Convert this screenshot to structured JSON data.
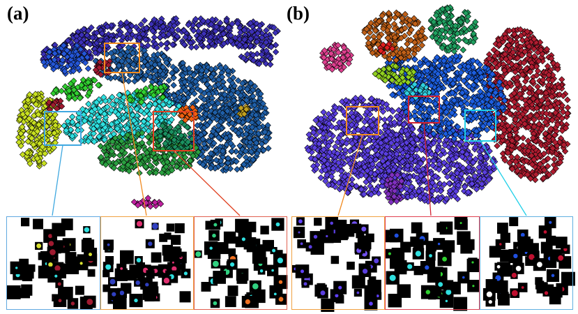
{
  "figure": {
    "panels": [
      {
        "label": "(a)",
        "clusters": [
          {
            "name": "purple-arc",
            "color": "#3c30b8"
          },
          {
            "name": "blue-left",
            "color": "#2456d8"
          },
          {
            "name": "steel-blue",
            "color": "#1f5fa8"
          },
          {
            "name": "cyan",
            "color": "#2ee0e0"
          },
          {
            "name": "yellow-green",
            "color": "#c8e020"
          },
          {
            "name": "green",
            "color": "#2aa040"
          },
          {
            "name": "teal-green",
            "color": "#1a9060"
          },
          {
            "name": "bright-green",
            "color": "#30d030"
          },
          {
            "name": "dark-red",
            "color": "#a01a30"
          },
          {
            "name": "orange",
            "color": "#f06010"
          },
          {
            "name": "olive",
            "color": "#c0a020"
          },
          {
            "name": "magenta",
            "color": "#c020a0"
          }
        ],
        "zoom_boxes": [
          {
            "name": "blue-box",
            "color": "#3fa8e0"
          },
          {
            "name": "orange-box",
            "color": "#f08a20"
          },
          {
            "name": "red-box",
            "color": "#e04020"
          }
        ]
      },
      {
        "label": "(b)",
        "clusters": [
          {
            "name": "violet-large",
            "color": "#5a3ee0"
          },
          {
            "name": "crimson",
            "color": "#b01c30"
          },
          {
            "name": "royal-blue",
            "color": "#1c5ee0"
          },
          {
            "name": "brown-orange",
            "color": "#c06018"
          },
          {
            "name": "green-top",
            "color": "#20a060"
          },
          {
            "name": "pink",
            "color": "#e04090"
          },
          {
            "name": "lime",
            "color": "#90d020"
          },
          {
            "name": "cyan",
            "color": "#30d0e0"
          },
          {
            "name": "purple-small",
            "color": "#8030c0"
          },
          {
            "name": "red-small",
            "color": "#e02020"
          }
        ],
        "zoom_boxes": [
          {
            "name": "orange-box",
            "color": "#f08a20"
          },
          {
            "name": "red-box",
            "color": "#d02030"
          },
          {
            "name": "cyan-box",
            "color": "#20d0e8"
          }
        ]
      }
    ],
    "zoom_strip": {
      "border_colors": [
        "#60a8e0",
        "#f0a040",
        "#e06050",
        "#f0a040",
        "#e04050",
        "#60b0e0"
      ]
    }
  }
}
